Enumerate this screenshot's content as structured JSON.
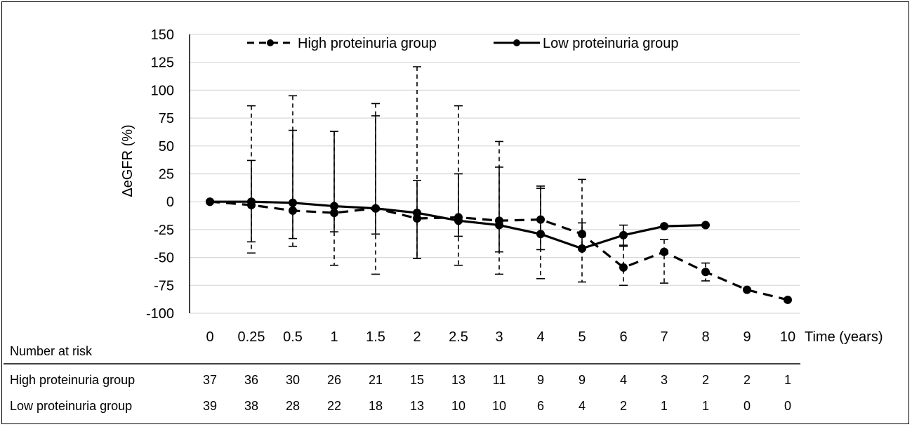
{
  "chart_data": {
    "type": "line",
    "ylabel": "ΔeGFR (%)",
    "xlabel": "Time (years)",
    "categories": [
      "0",
      "0.25",
      "0.5",
      "1",
      "1.5",
      "2",
      "2.5",
      "3",
      "4",
      "5",
      "6",
      "7",
      "8",
      "9",
      "10"
    ],
    "yticks": [
      "150",
      "125",
      "100",
      "75",
      "50",
      "25",
      "0",
      "-25",
      "-50",
      "-75",
      "-100"
    ],
    "ylim": [
      -100,
      150
    ],
    "ystep": 25,
    "grid": true,
    "legend_position": "top",
    "series": [
      {
        "name": "High proteinuria group",
        "style": "dashed",
        "values": [
          0,
          -3,
          -8,
          -10,
          -6,
          -15,
          -14,
          -17,
          -16,
          -29,
          -59,
          -45,
          -63,
          -79,
          -88
        ],
        "err_upper": [
          0,
          86,
          95,
          63,
          88,
          121,
          86,
          54,
          14,
          20,
          -40,
          -34,
          -55,
          -79,
          -88
        ],
        "err_lower": [
          0,
          -46,
          -40,
          -57,
          -65,
          -51,
          -57,
          -65,
          -69,
          -72,
          -75,
          -73,
          -71,
          -79,
          -88
        ]
      },
      {
        "name": "Low proteinuria group",
        "style": "solid",
        "values": [
          0,
          0,
          -1,
          -4,
          -6,
          -10,
          -17,
          -21,
          -29,
          -42,
          -30,
          -22,
          -21,
          null,
          null
        ],
        "err_upper": [
          0,
          37,
          64,
          63,
          77,
          19,
          25,
          31,
          12,
          -19,
          -21,
          -22,
          -21,
          null,
          null
        ],
        "err_lower": [
          0,
          -36,
          -33,
          -27,
          -29,
          -51,
          -31,
          -45,
          -43,
          -42,
          -39,
          -22,
          -21,
          null,
          null
        ]
      }
    ]
  },
  "risk_table": {
    "title": "Number at risk",
    "rows": [
      {
        "label": "High proteinuria group",
        "values": [
          "37",
          "36",
          "30",
          "26",
          "21",
          "15",
          "13",
          "11",
          "9",
          "9",
          "4",
          "3",
          "2",
          "2",
          "1"
        ]
      },
      {
        "label": "Low proteinuria group",
        "values": [
          "39",
          "38",
          "28",
          "22",
          "18",
          "13",
          "10",
          "10",
          "6",
          "4",
          "2",
          "1",
          "1",
          "0",
          "0"
        ]
      }
    ]
  },
  "colors": {
    "line": "#000000",
    "grid": "#d9d9d9"
  }
}
